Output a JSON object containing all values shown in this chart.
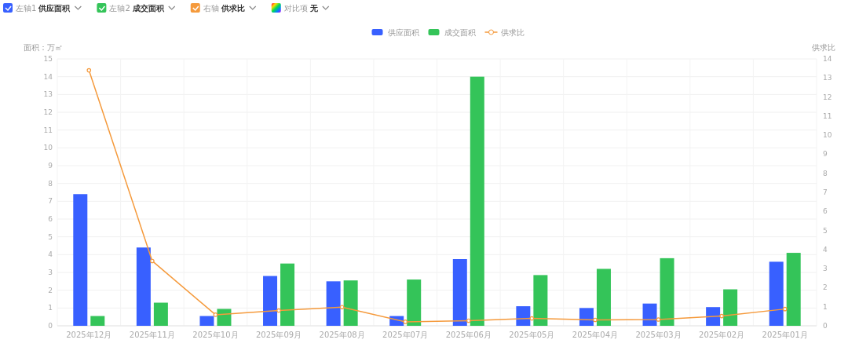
{
  "chart_data": {
    "type": "bar",
    "ylabel": "面积：万㎡",
    "y2label": "供求比",
    "annotations": [
      "左轴1",
      "供应面积",
      "左轴2",
      "成交面积",
      "右轴",
      "供求比",
      "对比项",
      "无"
    ],
    "categories": [
      "2025年12月",
      "2025年11月",
      "2025年10月",
      "2025年09月",
      "2025年08月",
      "2025年07月",
      "2025年06月",
      "2025年05月",
      "2025年04月",
      "2025年03月",
      "2025年02月",
      "2025年01月"
    ],
    "series": [
      {
        "name": "供应面积",
        "color": "#3860ff",
        "values": [
          7.4,
          4.4,
          0.55,
          2.8,
          2.5,
          0.55,
          3.75,
          1.1,
          1.0,
          1.25,
          1.05,
          3.6
        ]
      },
      {
        "name": "成交面积",
        "color": "#34c459",
        "values": [
          0.55,
          1.3,
          0.95,
          3.5,
          2.55,
          2.6,
          14.0,
          2.85,
          3.2,
          3.8,
          2.05,
          4.1
        ]
      },
      {
        "name": "供求比",
        "color": "#f59a3c",
        "type": "line",
        "axis": "y2",
        "marker": "circle",
        "values": [
          13.4,
          3.4,
          0.58,
          0.8,
          0.98,
          0.21,
          0.27,
          0.39,
          0.31,
          0.33,
          0.51,
          0.88
        ]
      }
    ],
    "ylim": [
      0,
      15
    ],
    "yticks": [
      0,
      1,
      2,
      3,
      4,
      5,
      6,
      7,
      8,
      9,
      10,
      11,
      12,
      13,
      14,
      15
    ],
    "y2lim": [
      0,
      14
    ],
    "y2ticks": [
      0,
      1,
      2,
      3,
      4,
      5,
      6,
      7,
      8,
      9,
      10,
      11,
      12,
      13,
      14
    ],
    "grid": true,
    "legend": "top"
  }
}
